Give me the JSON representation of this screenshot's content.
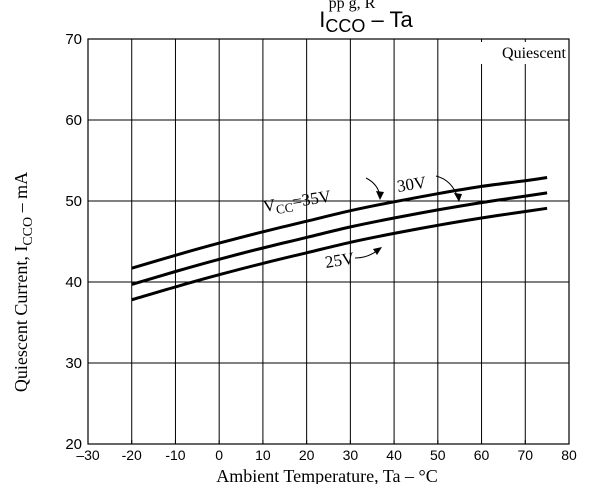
{
  "chart_data": {
    "type": "line",
    "title_main": "I",
    "title_sub": "CCO",
    "title_rest": " – Ta",
    "top_fragment": "pp g, R",
    "corner_label": "Quiescent",
    "ylabel_main": "Quiescent Current, I",
    "ylabel_sub": "CCO",
    "ylabel_rest": " – mA",
    "xlabel": "Ambient Temperature, Ta – °C",
    "xlim": [
      -30,
      80
    ],
    "ylim": [
      20,
      70
    ],
    "x_ticks": [
      -30,
      -20,
      -10,
      0,
      10,
      20,
      30,
      40,
      50,
      60,
      70,
      80
    ],
    "x_tick_labels": [
      "–30",
      "-20",
      "-10",
      "0",
      "10",
      "20",
      "30",
      "40",
      "50",
      "60",
      "70",
      "80"
    ],
    "y_ticks": [
      20,
      30,
      40,
      50,
      60,
      70
    ],
    "y_tick_labels": [
      "20",
      "30",
      "40",
      "50",
      "60",
      "70"
    ],
    "grid": true,
    "series": [
      {
        "name": "VCC=35V",
        "x": [
          -20,
          -10,
          0,
          10,
          20,
          30,
          40,
          50,
          60,
          70,
          75
        ],
        "y": [
          41.7,
          43.3,
          44.8,
          46.2,
          47.5,
          48.8,
          49.9,
          50.9,
          51.8,
          52.5,
          52.9
        ]
      },
      {
        "name": "30V",
        "x": [
          -20,
          -10,
          0,
          10,
          20,
          30,
          40,
          50,
          60,
          70,
          75
        ],
        "y": [
          39.7,
          41.3,
          42.8,
          44.2,
          45.5,
          46.8,
          47.9,
          48.9,
          49.8,
          50.6,
          51.0
        ]
      },
      {
        "name": "25V",
        "x": [
          -20,
          -10,
          0,
          10,
          20,
          30,
          40,
          50,
          60,
          70,
          75
        ],
        "y": [
          37.8,
          39.4,
          40.9,
          42.3,
          43.6,
          44.9,
          46.0,
          47.0,
          47.9,
          48.7,
          49.1
        ]
      }
    ],
    "curve_labels": [
      {
        "main": "V",
        "sub": "CC",
        "rest": "=35V"
      },
      {
        "main": "30V",
        "sub": "",
        "rest": ""
      },
      {
        "main": "25V",
        "sub": "",
        "rest": ""
      }
    ]
  }
}
